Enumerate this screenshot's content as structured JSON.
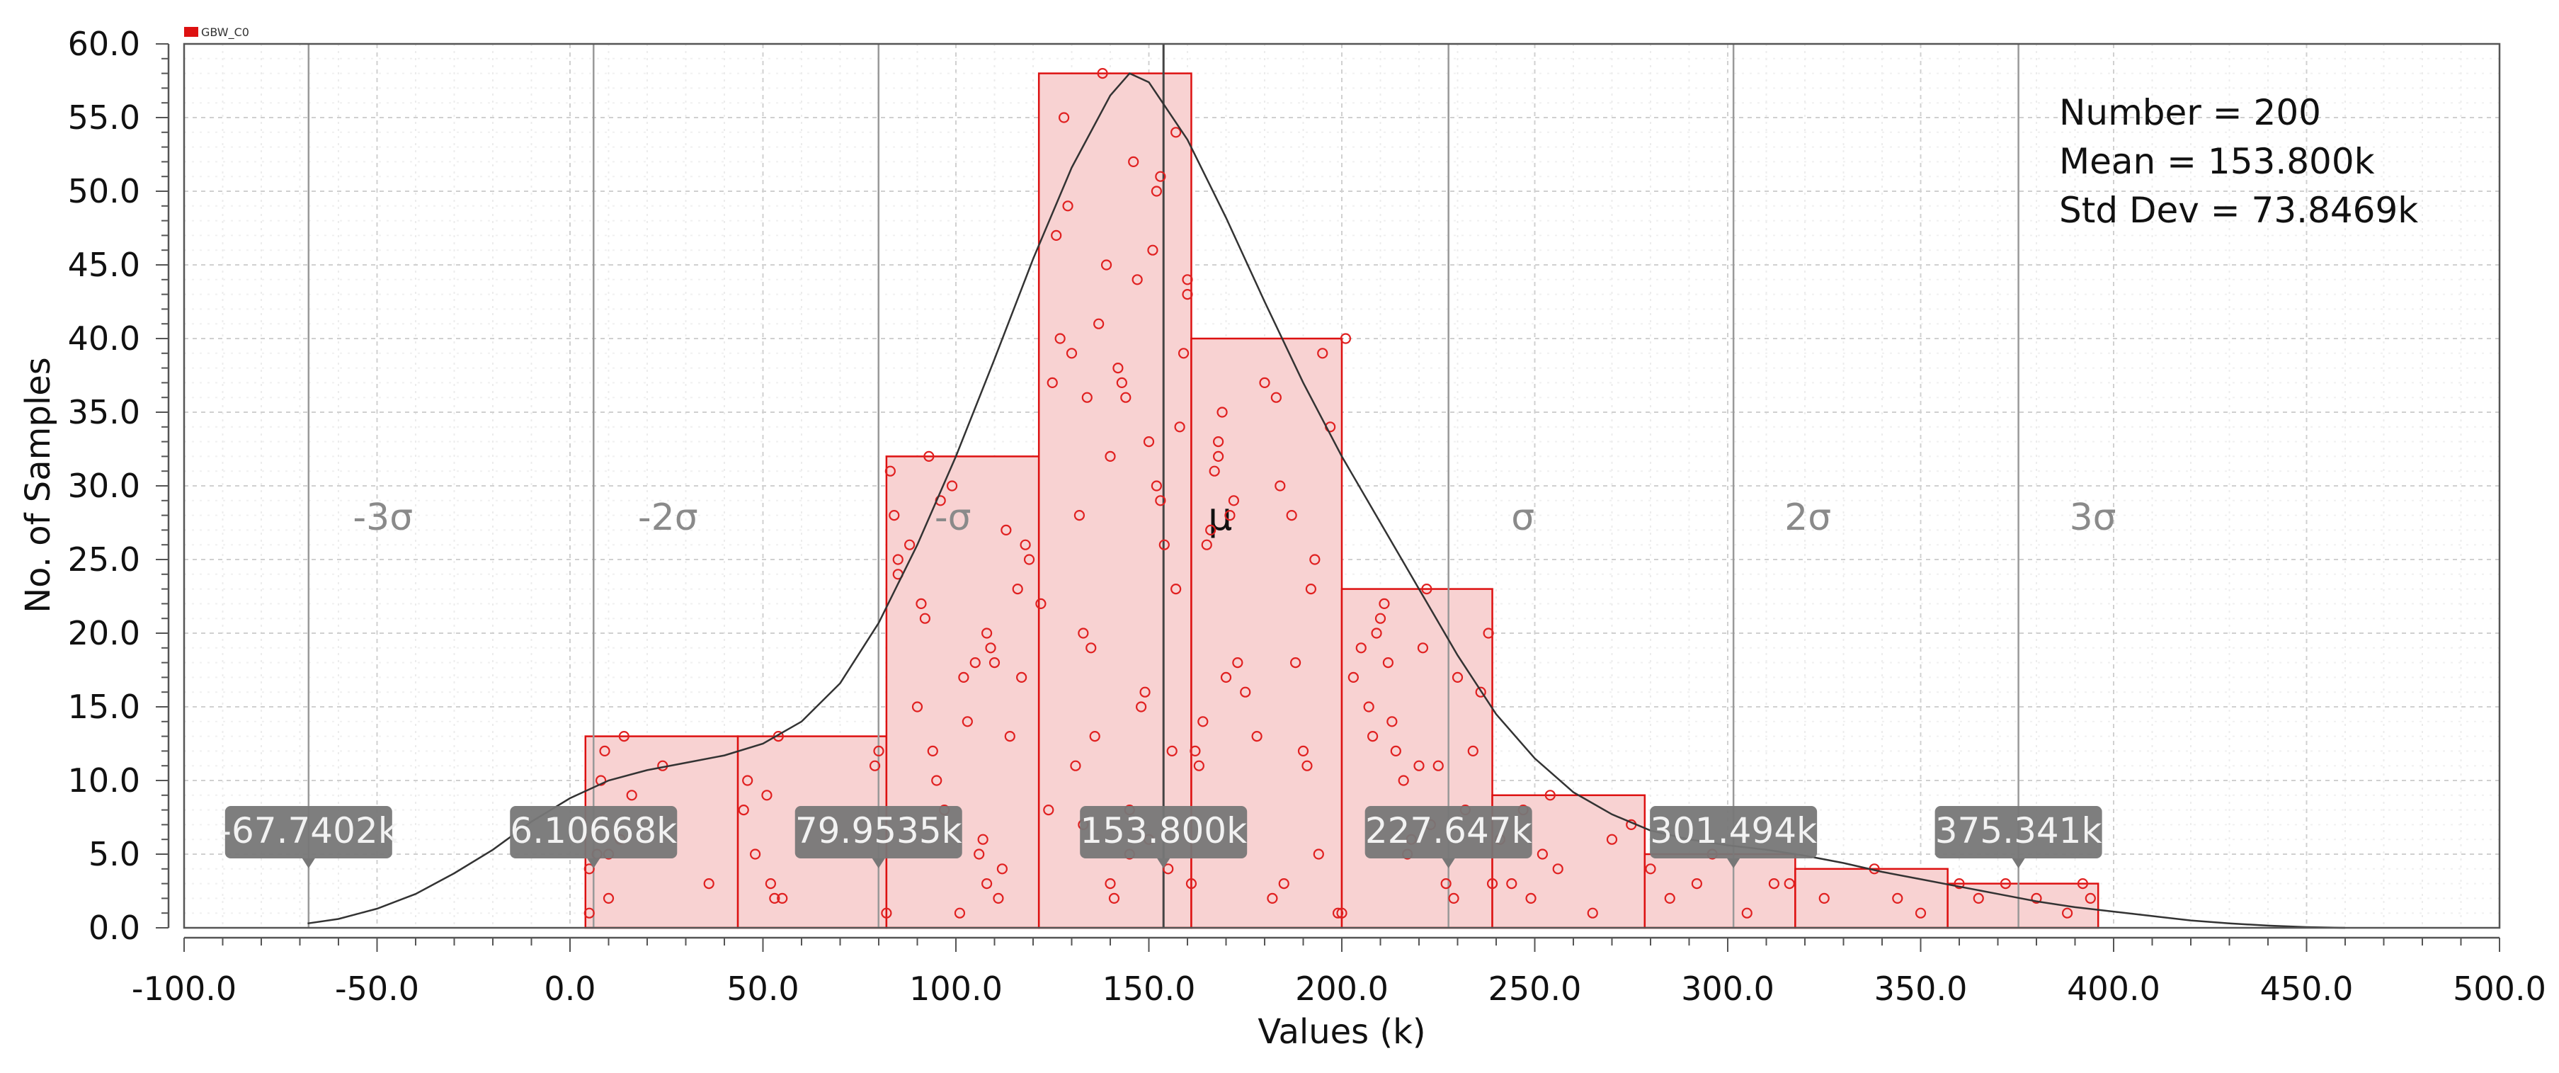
{
  "chart_data": {
    "type": "bar",
    "subtype": "histogram",
    "legend": {
      "entries": [
        {
          "name": "GBW_C0",
          "color": "#dd1111"
        }
      ],
      "placement": "top-left"
    },
    "xlabel": "Values (k)",
    "ylabel": "No. of Samples",
    "xlim": [
      -100,
      500
    ],
    "ylim": [
      0,
      60
    ],
    "xticks": [
      "-100.0",
      "-50.0",
      "0.0",
      "50.0",
      "100.0",
      "150.0",
      "200.0",
      "250.0",
      "300.0",
      "350.0",
      "400.0",
      "450.0",
      "500.0"
    ],
    "yticks": [
      "0.0",
      "5.0",
      "10.0",
      "15.0",
      "20.0",
      "25.0",
      "30.0",
      "35.0",
      "40.0",
      "45.0",
      "50.0",
      "55.0",
      "60.0"
    ],
    "grid": true,
    "bins": [
      {
        "x0": 4.0,
        "x1": 43.5,
        "count": 13
      },
      {
        "x0": 43.5,
        "x1": 82.0,
        "count": 13
      },
      {
        "x0": 82.0,
        "x1": 121.5,
        "count": 32
      },
      {
        "x0": 121.5,
        "x1": 161.0,
        "count": 58
      },
      {
        "x0": 161.0,
        "x1": 200.0,
        "count": 40
      },
      {
        "x0": 200.0,
        "x1": 239.0,
        "count": 23
      },
      {
        "x0": 239.0,
        "x1": 278.5,
        "count": 9
      },
      {
        "x0": 278.5,
        "x1": 317.5,
        "count": 5
      },
      {
        "x0": 317.5,
        "x1": 357.0,
        "count": 4
      },
      {
        "x0": 357.0,
        "x1": 396.0,
        "count": 3
      }
    ],
    "density_curve": {
      "x": [
        -68,
        -60,
        -50,
        -40,
        -30,
        -20,
        -10,
        0,
        10,
        20,
        30,
        40,
        50,
        60,
        70,
        80,
        90,
        100,
        110,
        120,
        130,
        140,
        145,
        150,
        160,
        170,
        180,
        190,
        200,
        210,
        220,
        230,
        240,
        250,
        260,
        270,
        280,
        290,
        300,
        310,
        320,
        330,
        340,
        350,
        360,
        370,
        380,
        390,
        400,
        410,
        420,
        430,
        440,
        450,
        460
      ],
      "y": [
        0.3,
        0.6,
        1.3,
        2.3,
        3.7,
        5.3,
        7.2,
        8.8,
        10.0,
        10.7,
        11.2,
        11.7,
        12.5,
        14.0,
        16.6,
        20.7,
        26.0,
        32.0,
        38.6,
        45.4,
        51.6,
        56.5,
        58.0,
        57.4,
        53.5,
        48.2,
        42.5,
        37.0,
        32.0,
        27.5,
        23.0,
        18.5,
        14.5,
        11.5,
        9.2,
        7.7,
        6.6,
        6.0,
        5.6,
        5.3,
        4.9,
        4.4,
        3.8,
        3.3,
        2.8,
        2.3,
        1.8,
        1.4,
        1.1,
        0.8,
        0.5,
        0.3,
        0.15,
        0.05,
        0.0
      ]
    },
    "samples": [
      [
        5,
        1
      ],
      [
        5,
        4
      ],
      [
        7,
        5
      ],
      [
        8,
        10
      ],
      [
        9,
        12
      ],
      [
        10,
        5
      ],
      [
        10,
        2
      ],
      [
        13,
        6
      ],
      [
        14,
        13
      ],
      [
        16,
        9
      ],
      [
        24,
        11
      ],
      [
        36,
        3
      ],
      [
        45,
        8
      ],
      [
        46,
        10
      ],
      [
        54,
        13
      ],
      [
        52,
        3
      ],
      [
        51,
        9
      ],
      [
        53,
        2
      ],
      [
        48,
        5
      ],
      [
        55,
        2
      ],
      [
        79,
        11
      ],
      [
        80,
        12
      ],
      [
        82,
        1
      ],
      [
        83,
        31
      ],
      [
        84,
        28
      ],
      [
        85,
        24
      ],
      [
        85,
        25
      ],
      [
        88,
        26
      ],
      [
        90,
        15
      ],
      [
        91,
        22
      ],
      [
        92,
        21
      ],
      [
        93,
        32
      ],
      [
        94,
        12
      ],
      [
        95,
        10
      ],
      [
        96,
        29
      ],
      [
        97,
        8
      ],
      [
        99,
        30
      ],
      [
        101,
        1
      ],
      [
        102,
        17
      ],
      [
        103,
        14
      ],
      [
        105,
        18
      ],
      [
        106,
        5
      ],
      [
        107,
        6
      ],
      [
        108,
        20
      ],
      [
        108,
        3
      ],
      [
        109,
        19
      ],
      [
        110,
        18
      ],
      [
        111,
        2
      ],
      [
        112,
        4
      ],
      [
        113,
        27
      ],
      [
        114,
        13
      ],
      [
        116,
        23
      ],
      [
        117,
        17
      ],
      [
        118,
        26
      ],
      [
        119,
        25
      ],
      [
        122,
        22
      ],
      [
        124,
        8
      ],
      [
        125,
        37
      ],
      [
        126,
        47
      ],
      [
        127,
        40
      ],
      [
        128,
        55
      ],
      [
        129,
        49
      ],
      [
        130,
        39
      ],
      [
        131,
        11
      ],
      [
        132,
        28
      ],
      [
        133,
        20
      ],
      [
        133,
        7
      ],
      [
        134,
        36
      ],
      [
        135,
        19
      ],
      [
        136,
        13
      ],
      [
        137,
        41
      ],
      [
        138,
        58
      ],
      [
        139,
        45
      ],
      [
        140,
        32
      ],
      [
        140,
        3
      ],
      [
        141,
        2
      ],
      [
        142,
        38
      ],
      [
        143,
        37
      ],
      [
        144,
        36
      ],
      [
        145,
        5
      ],
      [
        145,
        8
      ],
      [
        146,
        52
      ],
      [
        147,
        44
      ],
      [
        148,
        15
      ],
      [
        149,
        16
      ],
      [
        150,
        33
      ],
      [
        150,
        6
      ],
      [
        151,
        46
      ],
      [
        152,
        50
      ],
      [
        152,
        30
      ],
      [
        153,
        51
      ],
      [
        153,
        29
      ],
      [
        154,
        26
      ],
      [
        155,
        4
      ],
      [
        156,
        12
      ],
      [
        157,
        54
      ],
      [
        157,
        23
      ],
      [
        158,
        34
      ],
      [
        159,
        39
      ],
      [
        160,
        44
      ],
      [
        160,
        43
      ],
      [
        161,
        3
      ],
      [
        162,
        12
      ],
      [
        163,
        11
      ],
      [
        164,
        14
      ],
      [
        165,
        26
      ],
      [
        166,
        27
      ],
      [
        167,
        31
      ],
      [
        168,
        33
      ],
      [
        168,
        32
      ],
      [
        169,
        35
      ],
      [
        170,
        17
      ],
      [
        171,
        28
      ],
      [
        172,
        29
      ],
      [
        173,
        18
      ],
      [
        175,
        16
      ],
      [
        178,
        13
      ],
      [
        180,
        37
      ],
      [
        182,
        2
      ],
      [
        183,
        36
      ],
      [
        184,
        30
      ],
      [
        185,
        3
      ],
      [
        187,
        28
      ],
      [
        188,
        18
      ],
      [
        190,
        12
      ],
      [
        191,
        11
      ],
      [
        192,
        23
      ],
      [
        193,
        25
      ],
      [
        194,
        5
      ],
      [
        195,
        39
      ],
      [
        197,
        34
      ],
      [
        199,
        1
      ],
      [
        200,
        1
      ],
      [
        201,
        40
      ],
      [
        203,
        17
      ],
      [
        205,
        19
      ],
      [
        207,
        15
      ],
      [
        208,
        13
      ],
      [
        209,
        20
      ],
      [
        210,
        21
      ],
      [
        211,
        22
      ],
      [
        212,
        18
      ],
      [
        213,
        14
      ],
      [
        214,
        12
      ],
      [
        216,
        10
      ],
      [
        217,
        5
      ],
      [
        218,
        6
      ],
      [
        220,
        11
      ],
      [
        221,
        19
      ],
      [
        222,
        23
      ],
      [
        223,
        7
      ],
      [
        225,
        11
      ],
      [
        227,
        3
      ],
      [
        229,
        2
      ],
      [
        230,
        17
      ],
      [
        232,
        8
      ],
      [
        234,
        12
      ],
      [
        236,
        16
      ],
      [
        238,
        20
      ],
      [
        239,
        3
      ],
      [
        241,
        6
      ],
      [
        244,
        3
      ],
      [
        247,
        8
      ],
      [
        249,
        2
      ],
      [
        252,
        5
      ],
      [
        254,
        9
      ],
      [
        256,
        4
      ],
      [
        265,
        1
      ],
      [
        270,
        6
      ],
      [
        275,
        7
      ],
      [
        280,
        4
      ],
      [
        285,
        2
      ],
      [
        292,
        3
      ],
      [
        296,
        5
      ],
      [
        305,
        1
      ],
      [
        312,
        3
      ],
      [
        316,
        3
      ],
      [
        325,
        2
      ],
      [
        338,
        4
      ],
      [
        344,
        2
      ],
      [
        350,
        1
      ],
      [
        360,
        3
      ],
      [
        365,
        2
      ],
      [
        372,
        3
      ],
      [
        380,
        2
      ],
      [
        388,
        1
      ],
      [
        392,
        3
      ],
      [
        394,
        2
      ]
    ],
    "stats": {
      "number": "Number = 200",
      "mean": "Mean = 153.800k",
      "std_dev": "Std Dev = 73.8469k"
    },
    "sigma_lines": [
      {
        "label": "-3σ",
        "x": -67.7402,
        "marker": "-67.7402k"
      },
      {
        "label": "-2σ",
        "x": 6.10668,
        "marker": "6.10668k"
      },
      {
        "label": "-σ",
        "x": 79.9535,
        "marker": "79.9535k"
      },
      {
        "label": "μ",
        "x": 153.8,
        "marker": "153.800k"
      },
      {
        "label": "σ",
        "x": 227.647,
        "marker": "227.647k"
      },
      {
        "label": "2σ",
        "x": 301.494,
        "marker": "301.494k"
      },
      {
        "label": "3σ",
        "x": 375.341,
        "marker": "375.341k"
      }
    ],
    "colors": {
      "bar_fill": "#f8d2d2",
      "bar_stroke": "#dd1111",
      "point_stroke": "#e02020",
      "curve": "#333333",
      "sigma_line": "#999999",
      "mu_line": "#444444",
      "marker_bg": "#777777"
    }
  }
}
